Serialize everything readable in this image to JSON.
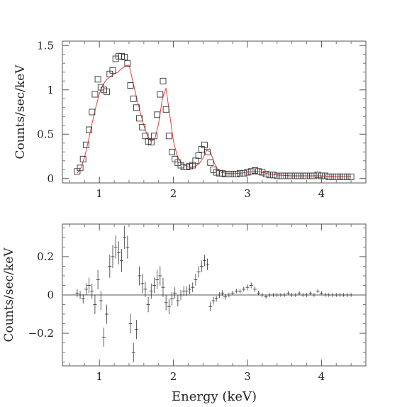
{
  "chart_data": [
    {
      "type": "scatter",
      "title": "",
      "xlabel": "",
      "ylabel": "Counts/sec/keV",
      "xlim": [
        0.5,
        4.6
      ],
      "ylim": [
        -0.05,
        1.55
      ],
      "xticks": [
        1,
        2,
        3,
        4
      ],
      "xtick_labels": [
        "1",
        "2",
        "3",
        "4"
      ],
      "yticks": [
        0,
        0.5,
        1,
        1.5
      ],
      "ytick_labels": [
        "0",
        "0.5",
        "1",
        "1.5"
      ],
      "grid": false,
      "legend": "none",
      "series": [
        {
          "role": "data",
          "marker": "square",
          "color": "#333333",
          "x": [
            0.7,
            0.74,
            0.78,
            0.82,
            0.86,
            0.9,
            0.94,
            0.98,
            1.02,
            1.06,
            1.1,
            1.14,
            1.18,
            1.22,
            1.26,
            1.3,
            1.34,
            1.38,
            1.42,
            1.46,
            1.5,
            1.54,
            1.58,
            1.62,
            1.66,
            1.7,
            1.74,
            1.78,
            1.82,
            1.86,
            1.9,
            1.94,
            1.98,
            2.02,
            2.06,
            2.1,
            2.14,
            2.18,
            2.22,
            2.26,
            2.3,
            2.34,
            2.38,
            2.42,
            2.46,
            2.5,
            2.54,
            2.58,
            2.62,
            2.66,
            2.7,
            2.75,
            2.8,
            2.85,
            2.9,
            2.95,
            3.0,
            3.05,
            3.1,
            3.15,
            3.2,
            3.25,
            3.3,
            3.35,
            3.4,
            3.45,
            3.5,
            3.55,
            3.6,
            3.65,
            3.7,
            3.75,
            3.8,
            3.85,
            3.9,
            3.95,
            4.0,
            4.05,
            4.1,
            4.15,
            4.2,
            4.25,
            4.3,
            4.35,
            4.4
          ],
          "y": [
            0.08,
            0.12,
            0.22,
            0.38,
            0.55,
            0.75,
            0.95,
            1.12,
            1.03,
            1.0,
            0.98,
            1.18,
            1.22,
            1.35,
            1.38,
            1.38,
            1.37,
            1.3,
            1.05,
            0.9,
            0.8,
            0.68,
            0.58,
            0.48,
            0.42,
            0.41,
            0.48,
            0.72,
            0.95,
            1.1,
            0.78,
            0.48,
            0.3,
            0.22,
            0.18,
            0.15,
            0.13,
            0.13,
            0.14,
            0.15,
            0.2,
            0.26,
            0.33,
            0.38,
            0.3,
            0.18,
            0.1,
            0.07,
            0.06,
            0.06,
            0.05,
            0.05,
            0.05,
            0.05,
            0.06,
            0.06,
            0.07,
            0.08,
            0.09,
            0.08,
            0.07,
            0.05,
            0.04,
            0.04,
            0.03,
            0.03,
            0.03,
            0.03,
            0.03,
            0.03,
            0.03,
            0.03,
            0.03,
            0.03,
            0.03,
            0.04,
            0.03,
            0.03,
            0.02,
            0.02,
            0.02,
            0.02,
            0.02,
            0.02,
            0.02
          ]
        },
        {
          "role": "model",
          "marker": "line",
          "color": "#e04040",
          "x": [
            0.7,
            0.75,
            0.8,
            0.85,
            0.9,
            0.95,
            1.0,
            1.05,
            1.1,
            1.15,
            1.2,
            1.25,
            1.3,
            1.35,
            1.4,
            1.45,
            1.5,
            1.55,
            1.6,
            1.65,
            1.7,
            1.75,
            1.8,
            1.85,
            1.9,
            1.95,
            2.0,
            2.05,
            2.1,
            2.15,
            2.2,
            2.25,
            2.3,
            2.35,
            2.4,
            2.45,
            2.5,
            2.55,
            2.6,
            2.65,
            2.7,
            2.8,
            2.9,
            3.0,
            3.1,
            3.2,
            3.3,
            3.4,
            3.5,
            3.6,
            3.7,
            3.8,
            3.9,
            4.0,
            4.1,
            4.2,
            4.3,
            4.4
          ],
          "y": [
            0.06,
            0.12,
            0.24,
            0.42,
            0.62,
            0.8,
            0.96,
            1.06,
            1.12,
            1.15,
            1.18,
            1.2,
            1.24,
            1.27,
            1.28,
            1.1,
            0.92,
            0.75,
            0.6,
            0.48,
            0.42,
            0.45,
            0.62,
            0.9,
            1.02,
            0.72,
            0.42,
            0.26,
            0.18,
            0.15,
            0.13,
            0.13,
            0.14,
            0.17,
            0.23,
            0.32,
            0.3,
            0.18,
            0.1,
            0.07,
            0.06,
            0.055,
            0.06,
            0.07,
            0.08,
            0.07,
            0.05,
            0.04,
            0.035,
            0.03,
            0.03,
            0.03,
            0.03,
            0.03,
            0.025,
            0.02,
            0.02,
            0.02
          ]
        }
      ]
    },
    {
      "type": "scatter",
      "title": "",
      "xlabel": "Energy (keV)",
      "ylabel": "Counts/sec/keV",
      "xlim": [
        0.5,
        4.6
      ],
      "ylim": [
        -0.37,
        0.37
      ],
      "xticks": [
        1,
        2,
        3,
        4
      ],
      "xtick_labels": [
        "1",
        "2",
        "3",
        "4"
      ],
      "yticks": [
        -0.2,
        0,
        0.2
      ],
      "ytick_labels": [
        "−0.2",
        "0",
        "0.2"
      ],
      "grid": false,
      "legend": "none",
      "reference_line": 0,
      "series": [
        {
          "role": "residuals",
          "marker": "errorbar",
          "color": "#333333",
          "x": [
            0.7,
            0.74,
            0.78,
            0.82,
            0.86,
            0.9,
            0.94,
            0.98,
            1.02,
            1.06,
            1.1,
            1.14,
            1.18,
            1.22,
            1.26,
            1.3,
            1.34,
            1.38,
            1.42,
            1.46,
            1.5,
            1.54,
            1.58,
            1.62,
            1.66,
            1.7,
            1.74,
            1.78,
            1.82,
            1.86,
            1.9,
            1.94,
            1.98,
            2.02,
            2.06,
            2.1,
            2.14,
            2.18,
            2.22,
            2.26,
            2.3,
            2.34,
            2.38,
            2.42,
            2.46,
            2.5,
            2.54,
            2.58,
            2.62,
            2.66,
            2.7,
            2.75,
            2.8,
            2.85,
            2.9,
            2.95,
            3.0,
            3.05,
            3.1,
            3.15,
            3.2,
            3.25,
            3.3,
            3.35,
            3.4,
            3.45,
            3.5,
            3.55,
            3.6,
            3.65,
            3.7,
            3.75,
            3.8,
            3.85,
            3.9,
            3.95,
            4.0,
            4.05,
            4.1,
            4.15,
            4.2,
            4.25,
            4.3,
            4.35,
            4.4
          ],
          "y": [
            0.01,
            0.0,
            -0.02,
            0.03,
            0.05,
            0.02,
            -0.05,
            0.08,
            -0.03,
            -0.22,
            -0.1,
            0.15,
            0.2,
            0.25,
            0.22,
            0.18,
            0.3,
            0.25,
            -0.15,
            -0.3,
            -0.18,
            0.1,
            0.06,
            0.03,
            -0.05,
            0.02,
            0.05,
            0.08,
            0.1,
            0.04,
            -0.04,
            -0.06,
            -0.02,
            0.01,
            -0.03,
            0.0,
            0.02,
            0.02,
            0.03,
            0.04,
            0.08,
            0.12,
            0.15,
            0.18,
            0.16,
            -0.06,
            -0.03,
            -0.02,
            0.0,
            0.01,
            -0.01,
            0.0,
            0.01,
            0.02,
            0.02,
            0.03,
            0.04,
            0.05,
            0.03,
            0.01,
            0.0,
            -0.01,
            0.0,
            0.0,
            0.0,
            0.0,
            0.0,
            0.01,
            0.0,
            0.0,
            0.01,
            0.0,
            0.0,
            0.01,
            0.0,
            0.02,
            0.01,
            0.0,
            0.0,
            0.0,
            0.0,
            0.0,
            0.0,
            0.0,
            0.0
          ],
          "yerr": [
            0.02,
            0.02,
            0.025,
            0.03,
            0.04,
            0.04,
            0.05,
            0.05,
            0.05,
            0.05,
            0.05,
            0.06,
            0.06,
            0.06,
            0.06,
            0.06,
            0.06,
            0.06,
            0.05,
            0.05,
            0.05,
            0.05,
            0.05,
            0.04,
            0.04,
            0.04,
            0.04,
            0.05,
            0.05,
            0.05,
            0.04,
            0.04,
            0.035,
            0.03,
            0.03,
            0.025,
            0.025,
            0.025,
            0.025,
            0.025,
            0.03,
            0.03,
            0.03,
            0.03,
            0.03,
            0.025,
            0.02,
            0.015,
            0.015,
            0.015,
            0.015,
            0.012,
            0.012,
            0.012,
            0.012,
            0.012,
            0.015,
            0.015,
            0.015,
            0.012,
            0.012,
            0.01,
            0.01,
            0.01,
            0.01,
            0.01,
            0.01,
            0.01,
            0.01,
            0.01,
            0.01,
            0.01,
            0.01,
            0.01,
            0.01,
            0.01,
            0.01,
            0.01,
            0.01,
            0.01,
            0.01,
            0.01,
            0.01,
            0.01,
            0.01
          ]
        }
      ]
    }
  ]
}
